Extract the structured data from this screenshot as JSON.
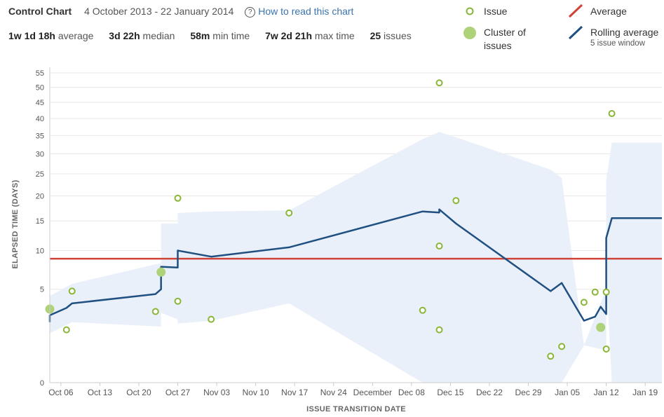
{
  "header": {
    "title": "Control Chart",
    "date_range": "4 October 2013 - 22 January 2014",
    "help_icon": "question-circle-icon",
    "help_link": "How to read this chart"
  },
  "stats": [
    {
      "value": "1w 1d 18h",
      "label": "average"
    },
    {
      "value": "3d 22h",
      "label": "median"
    },
    {
      "value": "58m",
      "label": "min time"
    },
    {
      "value": "7w 2d 21h",
      "label": "max time"
    },
    {
      "value": "25",
      "label": "issues"
    }
  ],
  "legend": {
    "issue": "Issue",
    "cluster_line1": "Cluster of",
    "cluster_line2": "issues",
    "average": "Average",
    "rolling": "Rolling average",
    "rolling_sub": "5 issue window"
  },
  "colors": {
    "issue": "#8ab637",
    "cluster": "#aed27a",
    "average": "#d04437",
    "rolling": "#205081",
    "band": "#e9f0f9"
  },
  "chart_data": {
    "type": "scatter",
    "title": "Control Chart",
    "xlabel": "ISSUE TRANSITION DATE",
    "ylabel": "ELAPSED TIME (DAYS)",
    "y_scale": "sqrt",
    "x_range": [
      "2013-10-04",
      "2014-01-22"
    ],
    "x_ticks": [
      "Oct 06",
      "Oct 13",
      "Oct 20",
      "Oct 27",
      "Nov 03",
      "Nov 10",
      "Nov 17",
      "Nov 24",
      "December",
      "Dec 08",
      "Dec 15",
      "Dec 22",
      "Dec 29",
      "Jan 05",
      "Jan 12",
      "Jan 19"
    ],
    "y_ticks": [
      0,
      5,
      10,
      15,
      20,
      25,
      30,
      35,
      40,
      45,
      50,
      55
    ],
    "average": 8.8,
    "issues": [
      {
        "x": "2013-10-04",
        "y": 3.1,
        "cluster": true
      },
      {
        "x": "2013-10-07",
        "y": 1.6
      },
      {
        "x": "2013-10-08",
        "y": 4.8
      },
      {
        "x": "2013-10-23",
        "y": 2.9
      },
      {
        "x": "2013-10-24",
        "y": 7.0,
        "cluster": true
      },
      {
        "x": "2013-10-27",
        "y": 19.5
      },
      {
        "x": "2013-10-27",
        "y": 3.8
      },
      {
        "x": "2013-11-02",
        "y": 2.3
      },
      {
        "x": "2013-11-16",
        "y": 16.5
      },
      {
        "x": "2013-12-10",
        "y": 3.0
      },
      {
        "x": "2013-12-13",
        "y": 10.7
      },
      {
        "x": "2013-12-13",
        "y": 51.5
      },
      {
        "x": "2013-12-13",
        "y": 1.6
      },
      {
        "x": "2013-12-16",
        "y": 19.0
      },
      {
        "x": "2014-01-02",
        "y": 0.4
      },
      {
        "x": "2014-01-04",
        "y": 0.75
      },
      {
        "x": "2014-01-08",
        "y": 3.7
      },
      {
        "x": "2014-01-10",
        "y": 4.7
      },
      {
        "x": "2014-01-11",
        "y": 1.75,
        "cluster": true
      },
      {
        "x": "2014-01-12",
        "y": 4.7
      },
      {
        "x": "2014-01-12",
        "y": 0.65
      },
      {
        "x": "2014-01-13",
        "y": 41.5
      }
    ],
    "rolling_average": [
      [
        "2013-10-04",
        2.1
      ],
      [
        "2013-10-04",
        2.6
      ],
      [
        "2013-10-07",
        3.2
      ],
      [
        "2013-10-08",
        3.6
      ],
      [
        "2013-10-23",
        4.5
      ],
      [
        "2013-10-24",
        5.0
      ],
      [
        "2013-10-24",
        7.7
      ],
      [
        "2013-10-27",
        7.6
      ],
      [
        "2013-10-27",
        10.0
      ],
      [
        "2013-11-02",
        9.1
      ],
      [
        "2013-11-16",
        10.5
      ],
      [
        "2013-12-10",
        16.8
      ],
      [
        "2013-12-13",
        16.6
      ],
      [
        "2013-12-13",
        17.2
      ],
      [
        "2013-12-16",
        14.5
      ],
      [
        "2014-01-02",
        4.8
      ],
      [
        "2014-01-04",
        5.7
      ],
      [
        "2014-01-08",
        2.2
      ],
      [
        "2014-01-10",
        2.5
      ],
      [
        "2014-01-11",
        3.3
      ],
      [
        "2014-01-12",
        2.7
      ],
      [
        "2014-01-12",
        8.0
      ],
      [
        "2014-01-12",
        12.0
      ],
      [
        "2014-01-13",
        15.5
      ],
      [
        "2014-01-22",
        15.5
      ]
    ],
    "band_upper": [
      [
        "2013-10-04",
        4.3
      ],
      [
        "2013-10-08",
        5.6
      ],
      [
        "2013-10-24",
        8.2
      ],
      [
        "2013-10-24",
        14.5
      ],
      [
        "2013-10-27",
        14.5
      ],
      [
        "2013-10-27",
        16.5
      ],
      [
        "2013-11-02",
        16.8
      ],
      [
        "2013-11-16",
        17.0
      ],
      [
        "2013-12-10",
        34.0
      ],
      [
        "2013-12-13",
        36.0
      ],
      [
        "2013-12-16",
        34.5
      ],
      [
        "2014-01-02",
        26.0
      ],
      [
        "2014-01-04",
        24.0
      ],
      [
        "2014-01-08",
        0.8
      ],
      [
        "2014-01-12",
        0.6
      ],
      [
        "2014-01-12",
        23.5
      ],
      [
        "2014-01-13",
        33.0
      ],
      [
        "2014-01-22",
        33.0
      ]
    ],
    "band_lower": [
      [
        "2014-01-22",
        0
      ],
      [
        "2014-01-13",
        0
      ],
      [
        "2014-01-12",
        6.5
      ],
      [
        "2014-01-12",
        5.0
      ],
      [
        "2014-01-08",
        0.8
      ],
      [
        "2014-01-04",
        0
      ],
      [
        "2014-01-02",
        0
      ],
      [
        "2013-12-16",
        0
      ],
      [
        "2013-12-13",
        0
      ],
      [
        "2013-12-10",
        0
      ],
      [
        "2013-11-16",
        3.6
      ],
      [
        "2013-11-02",
        2.2
      ],
      [
        "2013-10-27",
        2.0
      ],
      [
        "2013-10-27",
        2.3
      ],
      [
        "2013-10-24",
        2.8
      ],
      [
        "2013-10-24",
        1.8
      ],
      [
        "2013-10-08",
        2.1
      ],
      [
        "2013-10-04",
        1.4
      ],
      [
        "2013-10-04",
        0.8
      ]
    ]
  }
}
